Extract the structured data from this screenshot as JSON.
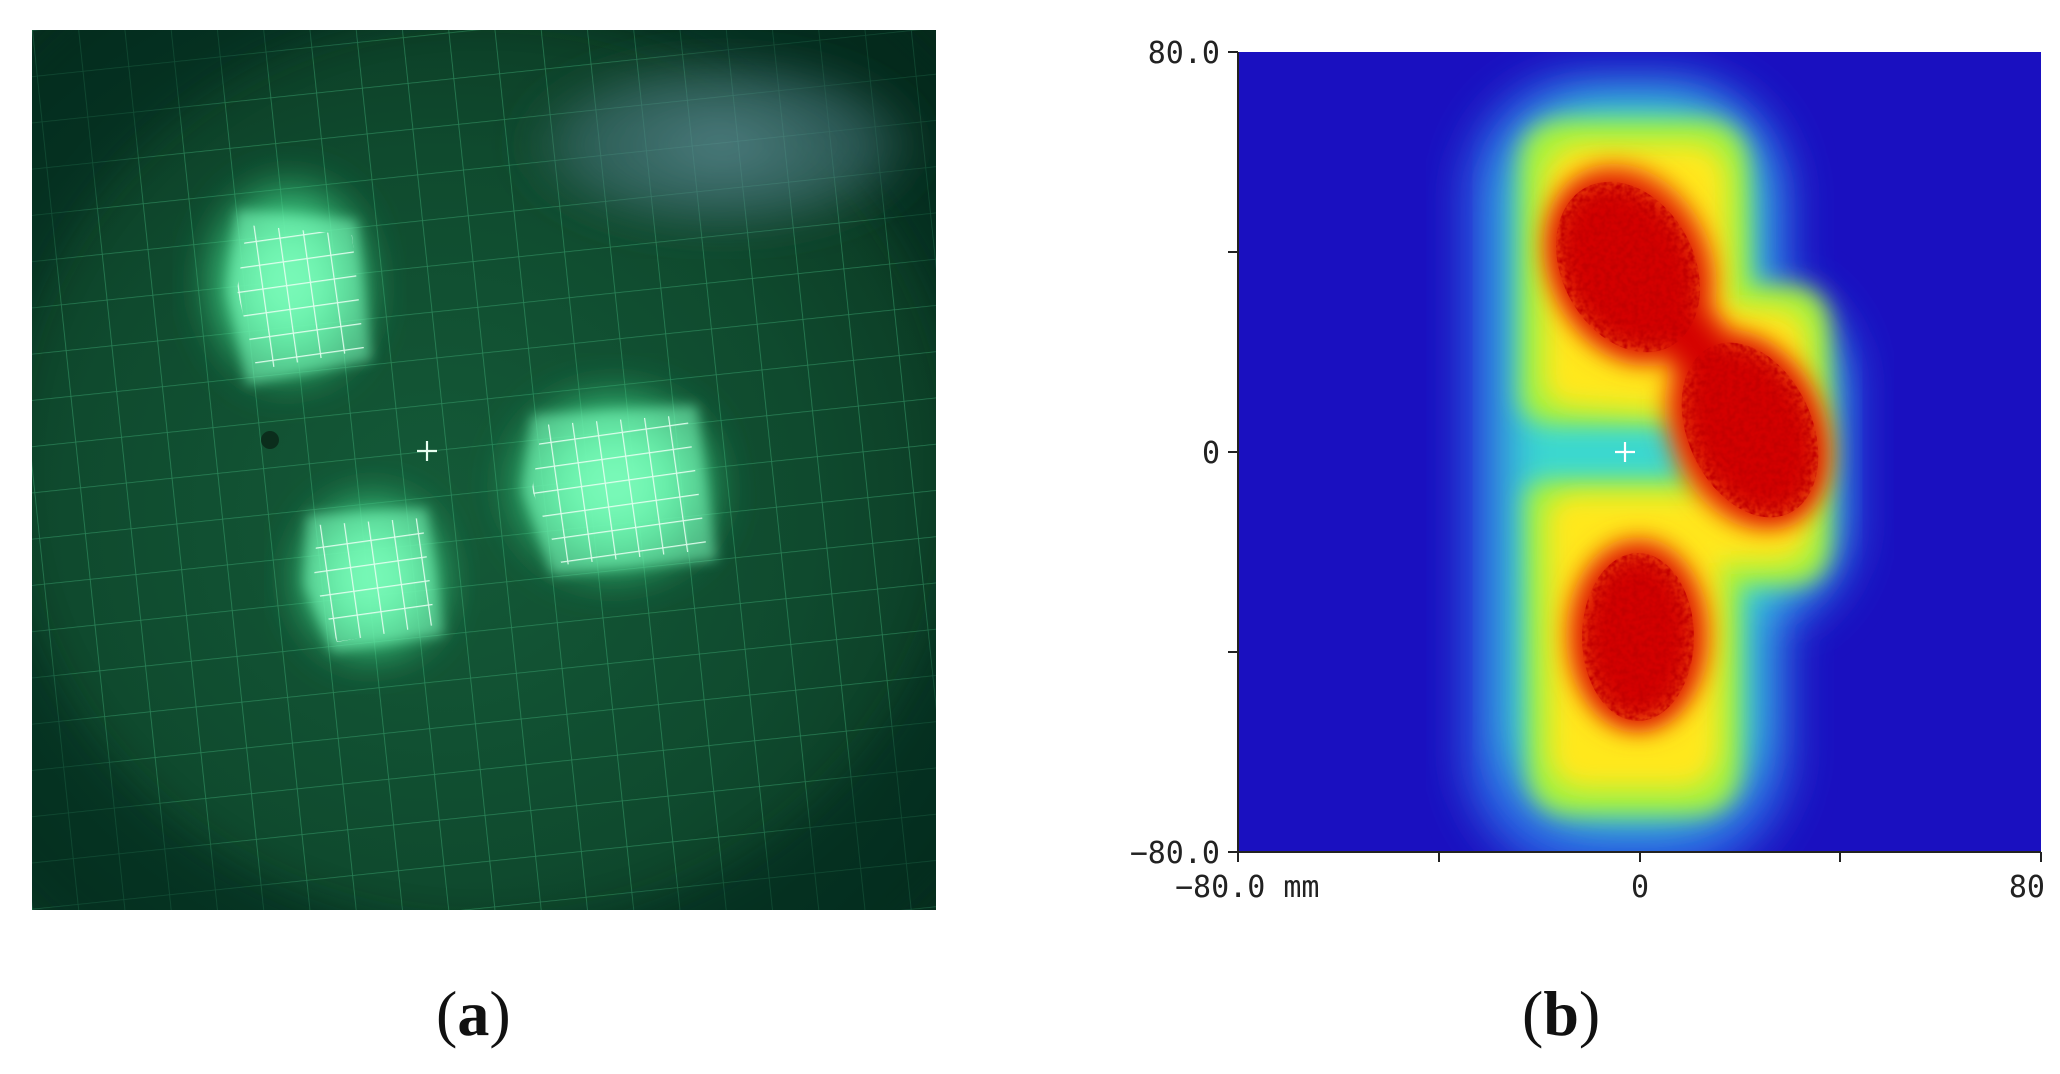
{
  "panel_a": {
    "caption": "a",
    "photo_tint": "#0f4a2e",
    "glow_color": "#66ffb0"
  },
  "panel_b": {
    "caption": "b",
    "y_ticks": {
      "top": "80.0",
      "middle": "0",
      "bottom": "−80.0"
    },
    "x_ticks": {
      "left": "−80.0 mm",
      "middle": "0",
      "right": "80"
    },
    "colormap": [
      "#1a10c0",
      "#2f6ee8",
      "#3ad8d0",
      "#a8f23c",
      "#ffe81a",
      "#f25a10",
      "#d40000"
    ]
  }
}
